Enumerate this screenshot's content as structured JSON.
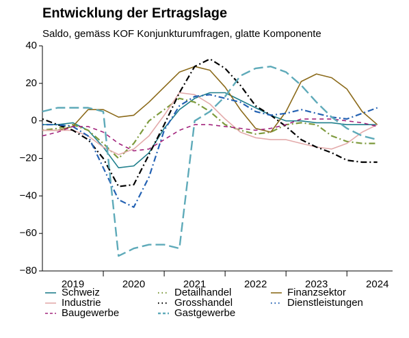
{
  "chart_data": {
    "type": "line",
    "title": "Entwicklung der Ertragslage",
    "subtitle": "Saldo, gemäss KOF Konjunkturumfragen, glatte Komponente",
    "x": [
      2019.0,
      2019.25,
      2019.5,
      2019.75,
      2020.0,
      2020.25,
      2020.5,
      2020.75,
      2021.0,
      2021.25,
      2021.5,
      2021.75,
      2022.0,
      2022.25,
      2022.5,
      2022.75,
      2023.0,
      2023.25,
      2023.5,
      2023.75,
      2024.0,
      2024.25,
      2024.5
    ],
    "xlim": [
      2019.0,
      2024.75
    ],
    "xticks": [
      {
        "value": 2019.5,
        "label": "2019"
      },
      {
        "value": 2020.5,
        "label": "2020"
      },
      {
        "value": 2021.5,
        "label": "2021"
      },
      {
        "value": 2022.5,
        "label": "2022"
      },
      {
        "value": 2023.5,
        "label": "2023"
      },
      {
        "value": 2024.5,
        "label": "2024"
      }
    ],
    "xminor_ticks": [
      2020,
      2021,
      2022,
      2023,
      2024
    ],
    "ylim": [
      -80,
      40
    ],
    "yticks": [
      40,
      20,
      0,
      {
        "value": -20,
        "label": "−20"
      },
      {
        "value": -40,
        "label": "−40"
      },
      {
        "value": -60,
        "label": "−60"
      },
      {
        "value": -80,
        "label": "−80"
      }
    ],
    "grid": false,
    "series": [
      {
        "name": "Schweiz",
        "color": "#1f7f8c",
        "dash": "solid",
        "values": [
          -2,
          -2,
          -1,
          -5,
          -14,
          -25,
          -24,
          -17,
          -4,
          6,
          12,
          15,
          15,
          11,
          7,
          3,
          0,
          0,
          -1,
          -1,
          -2,
          -2,
          -2
        ]
      },
      {
        "name": "Detailhandel",
        "color": "#7d9a3c",
        "dash": "dotdash",
        "values": [
          -5,
          -4,
          -2,
          -5,
          -12,
          -20,
          -12,
          0,
          6,
          12,
          10,
          5,
          -2,
          -5,
          -7,
          -6,
          -2,
          -1,
          -2,
          -8,
          -11,
          -12,
          -12
        ]
      },
      {
        "name": "Finanzsektor",
        "color": "#8b6a1a",
        "dash": "solid",
        "values": [
          -5,
          -5,
          -3,
          6,
          6,
          2,
          3,
          10,
          18,
          26,
          29,
          27,
          18,
          6,
          -4,
          -6,
          5,
          21,
          25,
          23,
          17,
          5,
          -2
        ]
      },
      {
        "name": "Industrie",
        "color": "#e3aaaa",
        "dash": "solid",
        "values": [
          -5,
          -5,
          -5,
          -8,
          -14,
          -18,
          -15,
          -8,
          3,
          15,
          14,
          9,
          1,
          -6,
          -9,
          -10,
          -10,
          -12,
          -14,
          -15,
          -12,
          -6,
          -2
        ]
      },
      {
        "name": "Grosshandel",
        "color": "#000000",
        "dash": "dotdash",
        "values": [
          1,
          -2,
          -5,
          -10,
          -20,
          -35,
          -34,
          -18,
          -2,
          15,
          29,
          33,
          28,
          19,
          8,
          3,
          -3,
          -10,
          -14,
          -17,
          -21,
          -22,
          -22
        ]
      },
      {
        "name": "Dienstleistungen",
        "color": "#2462b3",
        "dash": "dotdash",
        "values": [
          -2,
          -2,
          -3,
          -8,
          -25,
          -42,
          -46,
          -30,
          -5,
          8,
          13,
          14,
          12,
          10,
          5,
          3,
          4,
          6,
          4,
          2,
          1,
          4,
          7
        ]
      },
      {
        "name": "Baugewerbe",
        "color": "#a2237c",
        "dash": "dashed",
        "values": [
          -8,
          -6,
          -3,
          -3,
          -6,
          -12,
          -16,
          -15,
          -10,
          -5,
          -2,
          -2,
          -3,
          -4,
          -5,
          -4,
          -2,
          1,
          1,
          1,
          0,
          -1,
          -3
        ]
      },
      {
        "name": "Gastgewerbe",
        "color": "#5eaab9",
        "dash": "longdash",
        "values": [
          5,
          7,
          7,
          7,
          5,
          -72,
          -68,
          -66,
          -66,
          -68,
          0,
          5,
          13,
          24,
          28,
          29,
          26,
          19,
          10,
          2,
          -4,
          -8,
          -10
        ]
      }
    ]
  }
}
